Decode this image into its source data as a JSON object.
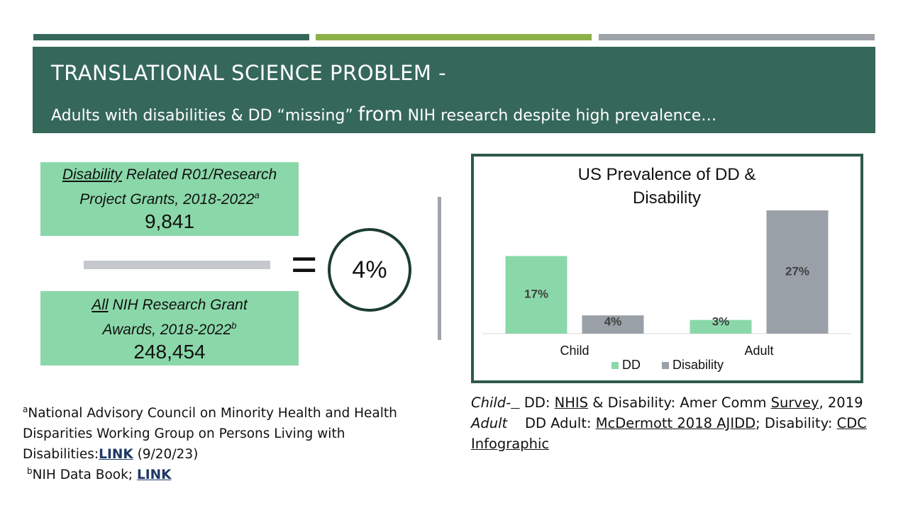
{
  "header": {
    "title": "TRANSLATIONAL SCIENCE PROBLEM -",
    "subtitle_start": "Adults with disabilities & DD “missing”",
    "subtitle_emphasis": "from",
    "subtitle_end": "NIH research despite high prevalence…"
  },
  "numerator": {
    "underlined": "Disability",
    "text": "Related R01/Research Project Grants,  2018-2022",
    "note": "a",
    "value": "9,841"
  },
  "denominator": {
    "underlined": "All",
    "text": "NIH Research Grant Awards, 2018-2022",
    "note": "b",
    "value": "248,454"
  },
  "equals": "=",
  "result": "4%",
  "footnotes": [
    {
      "mark": "a",
      "text": "National Advisory Council on Minority Health and Health Disparities Working Group on Persons Living with Disabilities:",
      "link": "LINK",
      "after": "(9/20/23)"
    },
    {
      "mark": "b",
      "text": "NIH Data Book;",
      "link": "LINK"
    }
  ],
  "sources": [
    {
      "label": "Child-",
      "parts": [
        "DD:",
        "NHIS",
        "& Disability:  Amer Comm",
        "Survey",
        ", 2019"
      ]
    },
    {
      "label": "Adult",
      "parts": [
        "DD Adult:",
        "McDermott 2018 AJIDD",
        ";  Disability:",
        "CDC Infographic"
      ]
    }
  ],
  "chart_data": {
    "type": "bar",
    "title": "US Prevalence of DD & Disability",
    "categories": [
      "Child",
      "Adult"
    ],
    "series": [
      {
        "name": "DD",
        "color": "#8ad8a9",
        "values": [
          17,
          3
        ],
        "value_labels": [
          "17%",
          "3%"
        ]
      },
      {
        "name": "Disability",
        "color": "#9aa0a7",
        "values": [
          4,
          27
        ],
        "value_labels": [
          "4%",
          "27%"
        ]
      }
    ],
    "legend": "bottom"
  }
}
